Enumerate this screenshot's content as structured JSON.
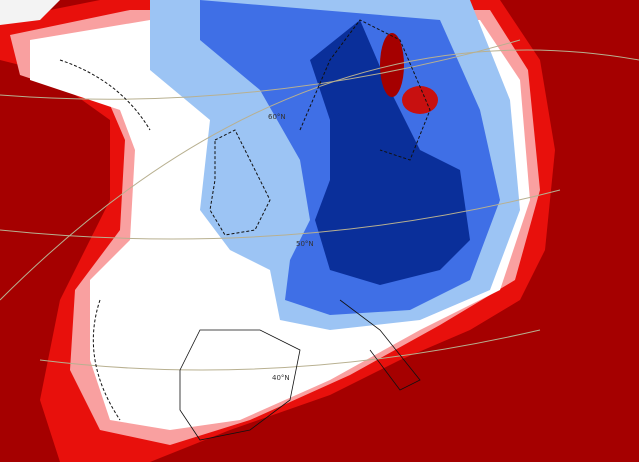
{
  "map": {
    "grid_labels": [
      "60°N",
      "50°N",
      "40°N"
    ]
  }
}
